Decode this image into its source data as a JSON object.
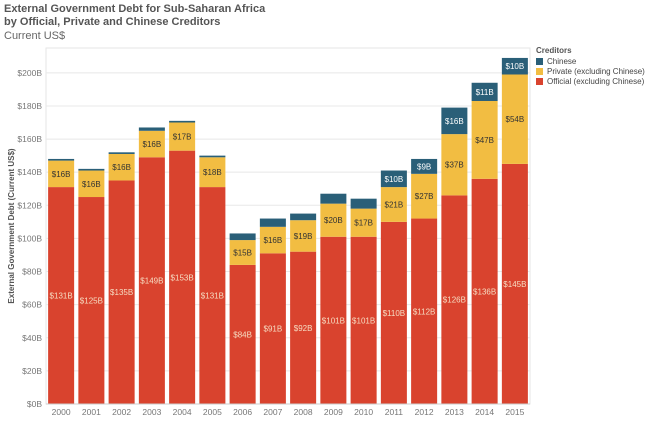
{
  "title": {
    "line1": "External Government Debt for Sub-Saharan Africa",
    "line2": "by Official, Private and Chinese Creditors",
    "subtitle": "Current US$"
  },
  "legend": {
    "title": "Creditors",
    "items": [
      {
        "label": "Chinese",
        "color": "#2a5f78"
      },
      {
        "label": "Private (excluding Chinese)",
        "color": "#f2bd42"
      },
      {
        "label": "Official (excluding Chinese)",
        "color": "#d9432e"
      }
    ]
  },
  "chart_data": {
    "type": "bar",
    "stacked": true,
    "ylabel": "External Government Debt (Current US$)",
    "xlabel": "",
    "ylim": [
      0,
      215
    ],
    "yticks": [
      0,
      20,
      40,
      60,
      80,
      100,
      120,
      140,
      160,
      180,
      200
    ],
    "ytick_labels": [
      "$0B",
      "$20B",
      "$40B",
      "$60B",
      "$80B",
      "$100B",
      "$120B",
      "$140B",
      "$160B",
      "$180B",
      "$200B"
    ],
    "grid": true,
    "legend_position": "top-right",
    "categories": [
      "2000",
      "2001",
      "2002",
      "2003",
      "2004",
      "2005",
      "2006",
      "2007",
      "2008",
      "2009",
      "2010",
      "2011",
      "2012",
      "2013",
      "2014",
      "2015"
    ],
    "series": [
      {
        "name": "Official (excluding Chinese)",
        "color": "#d9432e",
        "label_color": "#f6dcc2",
        "values": [
          131,
          125,
          135,
          149,
          153,
          131,
          84,
          91,
          92,
          101,
          101,
          110,
          112,
          126,
          136,
          145
        ],
        "labels": [
          "$131B",
          "$125B",
          "$135B",
          "$149B",
          "$153B",
          "$131B",
          "$84B",
          "$91B",
          "$92B",
          "$101B",
          "$101B",
          "$110B",
          "$112B",
          "$126B",
          "$136B",
          "$145B"
        ]
      },
      {
        "name": "Private (excluding Chinese)",
        "color": "#f2bd42",
        "label_color": "#333333",
        "values": [
          16,
          16,
          16,
          16,
          17,
          18,
          15,
          16,
          19,
          20,
          17,
          21,
          27,
          37,
          47,
          54
        ],
        "labels": [
          "$16B",
          "$16B",
          "$16B",
          "$16B",
          "$17B",
          "$18B",
          "$15B",
          "$16B",
          "$19B",
          "$20B",
          "$17B",
          "$21B",
          "$27B",
          "$37B",
          "$47B",
          "$54B"
        ]
      },
      {
        "name": "Chinese",
        "color": "#2a5f78",
        "label_color": "#ffffff",
        "values": [
          1,
          1,
          1,
          2,
          1,
          1,
          4,
          5,
          4,
          6,
          6,
          10,
          9,
          16,
          11,
          10
        ],
        "labels": [
          "",
          "",
          "",
          "",
          "",
          "",
          "",
          "",
          "",
          "",
          "",
          "$10B",
          "$9B",
          "$16B",
          "$11B",
          "$10B"
        ]
      }
    ]
  }
}
